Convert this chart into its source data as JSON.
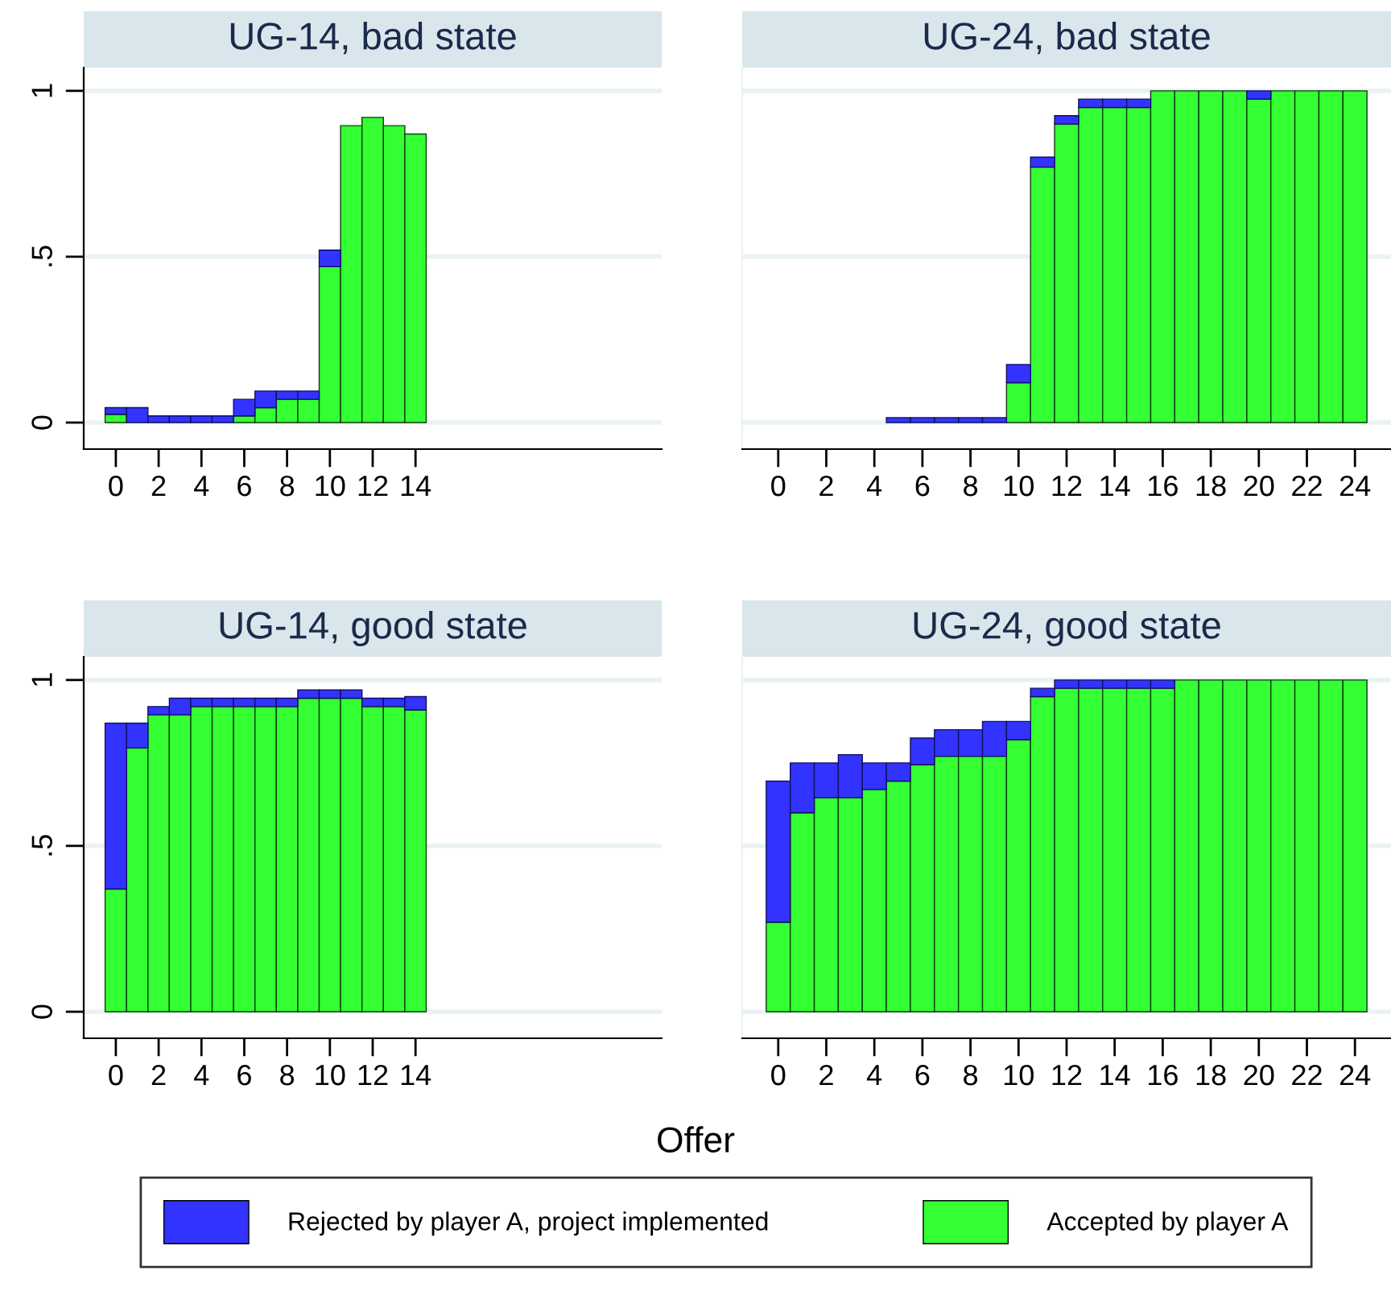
{
  "chart_data": [
    {
      "type": "bar",
      "stacked": true,
      "title": "UG-14, bad state",
      "legend": "bottom",
      "x": [
        0,
        1,
        2,
        3,
        4,
        5,
        6,
        7,
        8,
        9,
        10,
        11,
        12,
        13,
        14
      ],
      "xlim": [
        -1.5,
        25.5
      ],
      "xticks": [
        0,
        2,
        4,
        6,
        8,
        10,
        12,
        14
      ],
      "ylim": [
        -0.08,
        1.07
      ],
      "yticks": [
        0,
        {
          "value": 0.5,
          "label": ".5"
        },
        1
      ],
      "grid": "y",
      "series": [
        {
          "name": "Accepted by player A",
          "color": "#33ff33",
          "values": [
            0.025,
            0,
            0,
            0,
            0,
            0,
            0.02,
            0.045,
            0.07,
            0.07,
            0.47,
            0.895,
            0.92,
            0.895,
            0.87
          ]
        },
        {
          "name": "Rejected by player A, project implemented",
          "color": "#3333ff",
          "values": [
            0.02,
            0.045,
            0.02,
            0.02,
            0.02,
            0.02,
            0.05,
            0.05,
            0.025,
            0.025,
            0.05,
            0,
            0,
            0,
            0
          ]
        }
      ]
    },
    {
      "type": "bar",
      "stacked": true,
      "title": "UG-24, bad state",
      "x": [
        0,
        1,
        2,
        3,
        4,
        5,
        6,
        7,
        8,
        9,
        10,
        11,
        12,
        13,
        14,
        15,
        16,
        17,
        18,
        19,
        20,
        21,
        22,
        23,
        24
      ],
      "xlim": [
        -1.5,
        25.5
      ],
      "xticks": [
        0,
        2,
        4,
        6,
        8,
        10,
        12,
        14,
        16,
        18,
        20,
        22,
        24
      ],
      "ylim": [
        -0.08,
        1.07
      ],
      "yticks": [
        0,
        0.5,
        1
      ],
      "grid": "y",
      "tick_labels": "x",
      "series": [
        {
          "color": "#33ff33",
          "values": [
            0,
            0,
            0,
            0,
            0,
            0,
            0,
            0,
            0,
            0,
            0.12,
            0.77,
            0.9,
            0.95,
            0.95,
            0.95,
            1,
            1,
            1,
            1,
            0.975,
            1,
            1,
            1,
            1
          ]
        },
        {
          "color": "#3333ff",
          "values": [
            0,
            0,
            0,
            0,
            0,
            0.015,
            0.015,
            0.015,
            0.015,
            0.015,
            0.055,
            0.03,
            0.025,
            0.025,
            0.025,
            0.025,
            0,
            0,
            0,
            0,
            0.025,
            0,
            0,
            0,
            0
          ]
        }
      ]
    },
    {
      "type": "bar",
      "stacked": true,
      "title": "UG-14, good state",
      "x": [
        0,
        1,
        2,
        3,
        4,
        5,
        6,
        7,
        8,
        9,
        10,
        11,
        12,
        13,
        14
      ],
      "xlim": [
        -1.5,
        25.5
      ],
      "xticks": [
        0,
        2,
        4,
        6,
        8,
        10,
        12,
        14
      ],
      "ylim": [
        -0.08,
        1.07
      ],
      "yticks": [
        0,
        {
          "value": 0.5,
          "label": ".5"
        },
        1
      ],
      "grid": "y",
      "series": [
        {
          "color": "#33ff33",
          "values": [
            0.37,
            0.795,
            0.895,
            0.895,
            0.92,
            0.92,
            0.92,
            0.92,
            0.92,
            0.945,
            0.945,
            0.945,
            0.92,
            0.92,
            0.91
          ]
        },
        {
          "color": "#3333ff",
          "values": [
            0.5,
            0.075,
            0.025,
            0.05,
            0.025,
            0.025,
            0.025,
            0.025,
            0.025,
            0.025,
            0.025,
            0.025,
            0.025,
            0.025,
            0.04
          ]
        }
      ]
    },
    {
      "type": "bar",
      "stacked": true,
      "title": "UG-24, good state",
      "xlabel": "Offer",
      "x": [
        0,
        1,
        2,
        3,
        4,
        5,
        6,
        7,
        8,
        9,
        10,
        11,
        12,
        13,
        14,
        15,
        16,
        17,
        18,
        19,
        20,
        21,
        22,
        23,
        24
      ],
      "xlim": [
        -1.5,
        25.5
      ],
      "xticks": [
        0,
        2,
        4,
        6,
        8,
        10,
        12,
        14,
        16,
        18,
        20,
        22,
        24
      ],
      "ylim": [
        -0.08,
        1.07
      ],
      "yticks": [
        0,
        0.5,
        1
      ],
      "grid": "y",
      "tick_labels": "x",
      "series": [
        {
          "color": "#33ff33",
          "values": [
            0.27,
            0.6,
            0.645,
            0.645,
            0.67,
            0.695,
            0.745,
            0.77,
            0.77,
            0.77,
            0.82,
            0.95,
            0.975,
            0.975,
            0.975,
            0.975,
            0.975,
            1,
            1,
            1,
            1,
            1,
            1,
            1,
            1
          ]
        },
        {
          "color": "#3333ff",
          "values": [
            0.425,
            0.15,
            0.105,
            0.13,
            0.08,
            0.055,
            0.08,
            0.08,
            0.08,
            0.105,
            0.055,
            0.025,
            0.025,
            0.025,
            0.025,
            0.025,
            0.025,
            0,
            0,
            0,
            0,
            0,
            0,
            0,
            0
          ]
        }
      ]
    }
  ]
}
